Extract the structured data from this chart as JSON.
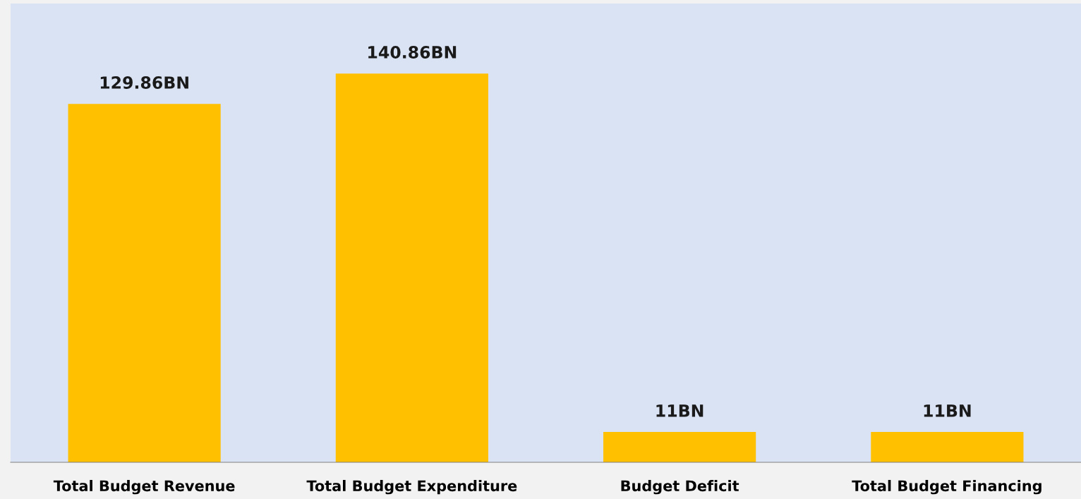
{
  "chart_data": {
    "type": "bar",
    "categories": [
      "Total Budget Revenue",
      "Total Budget Expenditure",
      "Budget Deficit",
      "Total Budget Financing"
    ],
    "values": [
      129.86,
      140.86,
      11,
      11
    ],
    "value_labels": [
      "129.86BN",
      "140.86BN",
      "11BN",
      "11BN"
    ],
    "color": "#ffc000",
    "grid": false,
    "legend": false
  }
}
